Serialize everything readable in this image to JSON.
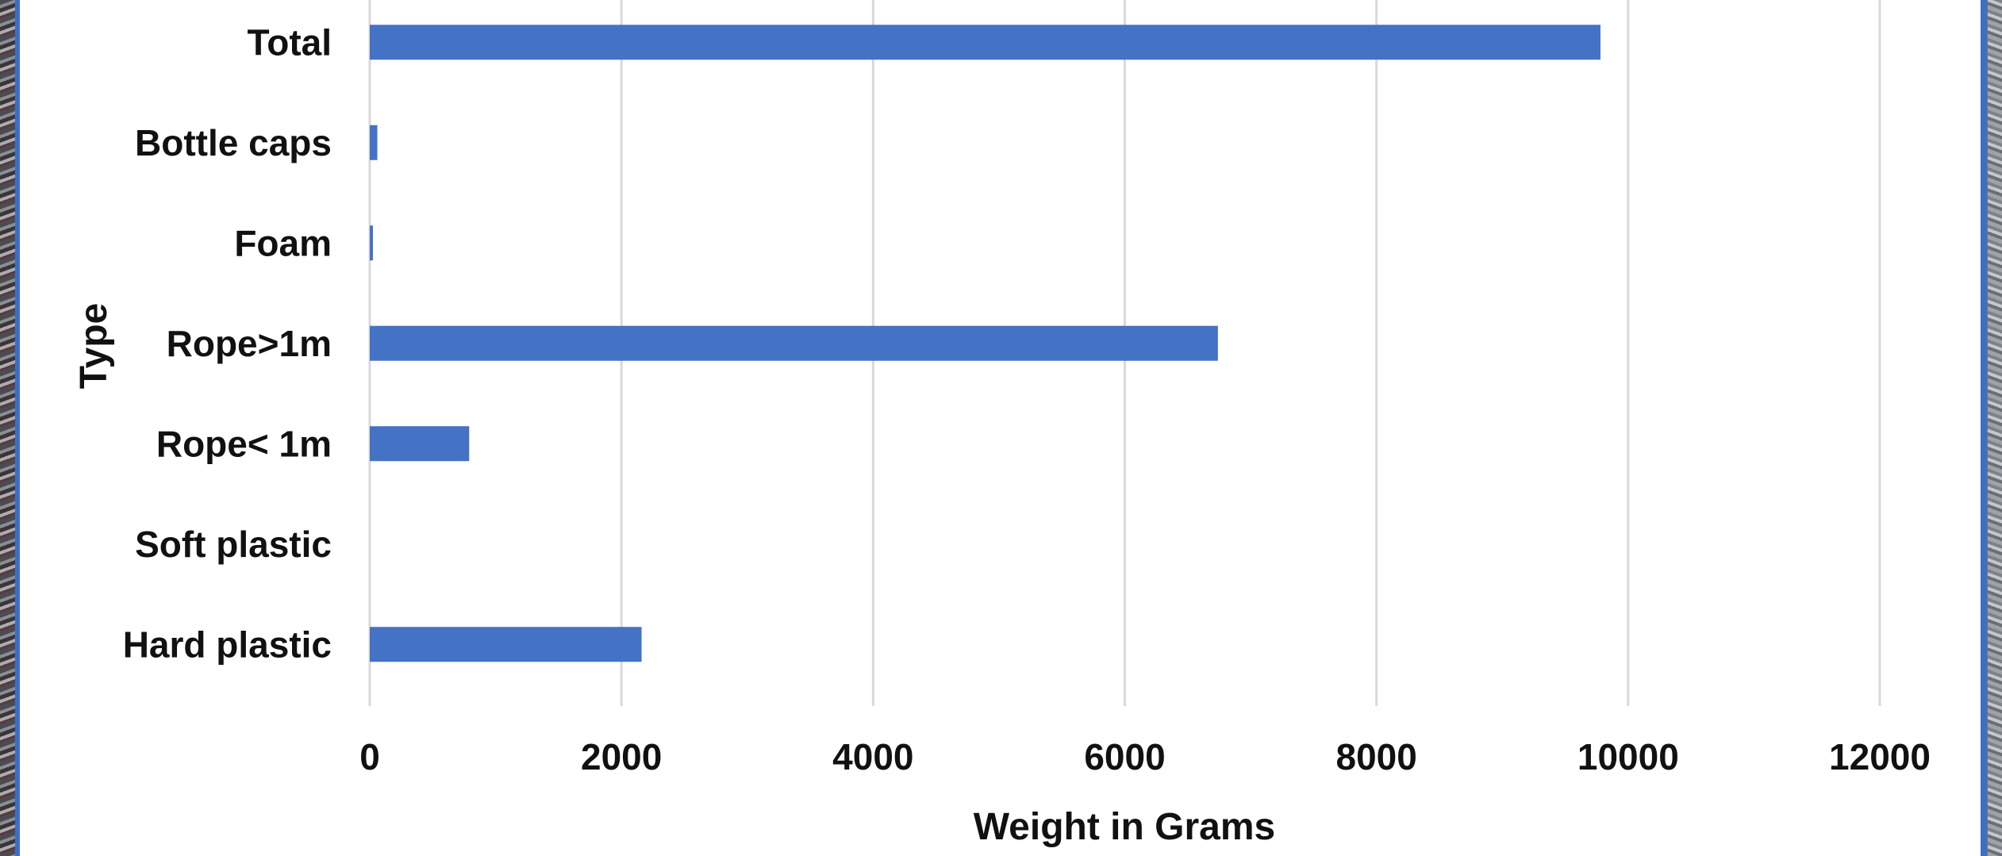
{
  "chart_data": {
    "type": "bar",
    "orientation": "horizontal",
    "title": "",
    "xlabel": "Weight in Grams",
    "ylabel": "Type",
    "categories": [
      "Hard plastic",
      "Soft plastic",
      "Rope< 1m",
      "Rope>1m",
      "Foam",
      "Bottle caps",
      "Total"
    ],
    "values": [
      2160,
      0,
      790,
      6740,
      25,
      60,
      9780
    ],
    "xlim": [
      0,
      12000
    ],
    "xticks": [
      "0",
      "2000",
      "4000",
      "6000",
      "8000",
      "10000",
      "12000"
    ],
    "grid": "vertical",
    "legend": "none",
    "bar_color": "#4472C4",
    "grid_color": "#d9d9d9"
  }
}
